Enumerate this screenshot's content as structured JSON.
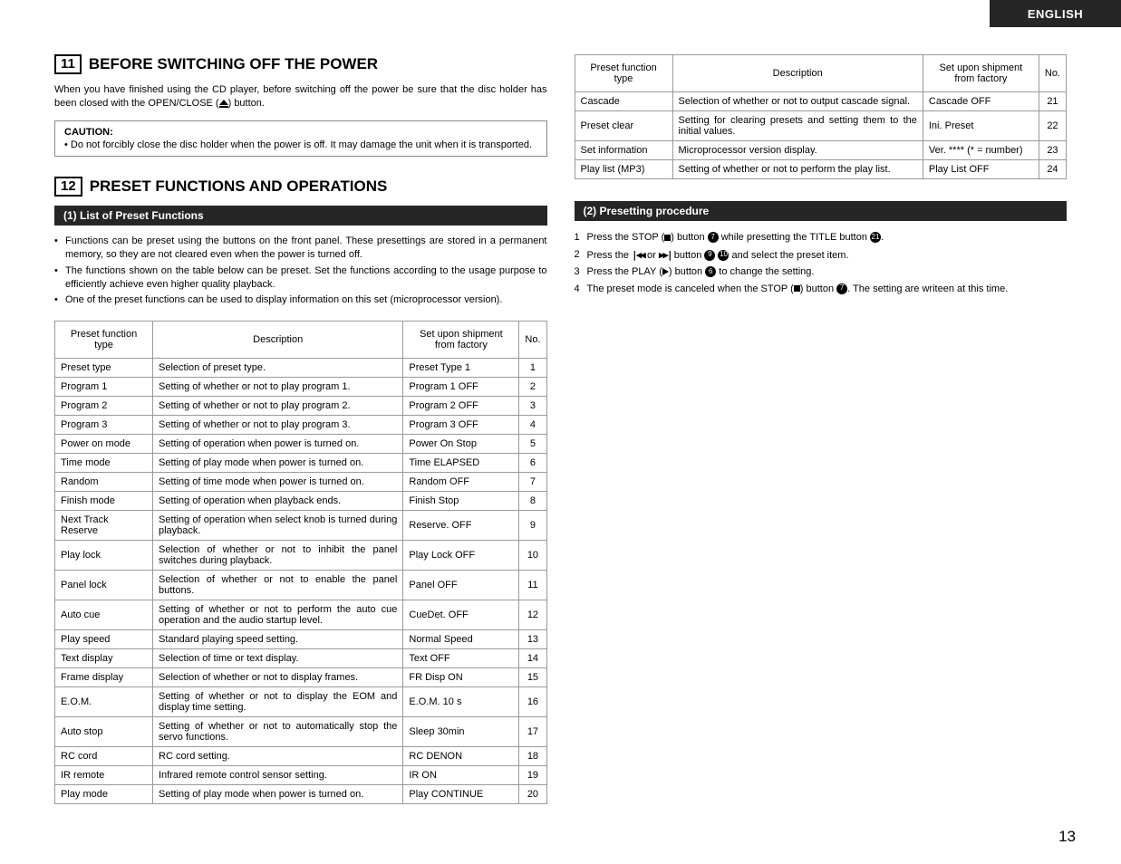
{
  "header": {
    "language": "ENGLISH"
  },
  "page_number": "13",
  "section11": {
    "number": "11",
    "title": "BEFORE SWITCHING OFF THE POWER",
    "intro": "When you have finished using the CD player, before switching off the power be sure that the disc holder has been closed with the OPEN/CLOSE (",
    "intro_suffix": ") button.",
    "caution_title": "CAUTION:",
    "caution_text": "• Do not forcibly close the disc holder when the power is off. It may damage the unit when it is transported."
  },
  "section12": {
    "number": "12",
    "title": "PRESET FUNCTIONS AND OPERATIONS",
    "sub1_title": "(1) List of Preset Functions",
    "sub1_bullets": [
      "Functions can be preset using the buttons on the front panel. These presettings are stored in a permanent memory, so they are not cleared even when the power is turned off.",
      "The functions shown on the table below can be preset. Set the functions according to the usage purpose to efficiently achieve even higher quality playback.",
      "One of the preset functions can be used to display information on this set (microprocessor version)."
    ],
    "sub2_title": "(2) Presetting procedure",
    "sub2_steps": [
      {
        "n": "1",
        "pre": "Press the STOP (",
        "mid1": ") button ",
        "ref1": "7",
        "mid2": " while presetting the TITLE button ",
        "ref2": "21",
        "post": "."
      },
      {
        "n": "2",
        "pre": "Press the ",
        "skip1": "|◀◀",
        "mid1": " or ",
        "skip2": "▶▶|",
        "mid2": " button ",
        "ref1": "9",
        "mid3": " ",
        "ref2": "10",
        "post": " and select the preset item."
      },
      {
        "n": "3",
        "pre": "Press the PLAY (",
        "mid1": ") button ",
        "ref1": "6",
        "post": " to change the setting."
      },
      {
        "n": "4",
        "pre": "The preset mode is canceled when the STOP (",
        "mid1": ") button ",
        "ref1": "7",
        "post": ". The setting are writeen at this time."
      }
    ]
  },
  "table_headers": {
    "type": "Preset function type",
    "desc": "Description",
    "ship": "Set upon shipment from factory",
    "no": "No."
  },
  "table1": [
    {
      "type": "Preset type",
      "desc": "Selection of preset type.",
      "ship": "Preset Type 1",
      "no": "1"
    },
    {
      "type": "Program 1",
      "desc": "Setting of whether or not to play program 1.",
      "ship": "Program 1 OFF",
      "no": "2"
    },
    {
      "type": "Program 2",
      "desc": "Setting of whether or not to play program 2.",
      "ship": "Program 2 OFF",
      "no": "3"
    },
    {
      "type": "Program 3",
      "desc": "Setting of whether or not to play program 3.",
      "ship": "Program 3 OFF",
      "no": "4"
    },
    {
      "type": "Power on mode",
      "desc": "Setting of operation when power is turned on.",
      "ship": "Power On Stop",
      "no": "5"
    },
    {
      "type": "Time mode",
      "desc": "Setting of play mode when power is turned on.",
      "ship": "Time ELAPSED",
      "no": "6"
    },
    {
      "type": "Random",
      "desc": "Setting of time mode when power is turned on.",
      "ship": "Random OFF",
      "no": "7"
    },
    {
      "type": "Finish mode",
      "desc": "Setting of operation when playback ends.",
      "ship": "Finish Stop",
      "no": "8"
    },
    {
      "type": "Next Track Reserve",
      "desc": "Setting of operation when select knob is turned during playback.",
      "ship": "Reserve. OFF",
      "no": "9"
    },
    {
      "type": "Play lock",
      "desc": "Selection of whether or not to inhibit the panel switches during playback.",
      "ship": "Play Lock OFF",
      "no": "10"
    },
    {
      "type": "Panel lock",
      "desc": "Selection of whether or not to enable the panel buttons.",
      "ship": "Panel OFF",
      "no": "11"
    },
    {
      "type": "Auto cue",
      "desc": "Setting of whether or not to perform the auto cue operation and the audio startup level.",
      "ship": "CueDet. OFF",
      "no": "12"
    },
    {
      "type": "Play speed",
      "desc": "Standard playing speed setting.",
      "ship": "Normal Speed",
      "no": "13"
    },
    {
      "type": "Text display",
      "desc": "Selection of time or text display.",
      "ship": "Text OFF",
      "no": "14"
    },
    {
      "type": "Frame display",
      "desc": "Selection of whether or not to display frames.",
      "ship": "FR Disp ON",
      "no": "15"
    },
    {
      "type": "E.O.M.",
      "desc": "Setting of whether or not to display the EOM and display time setting.",
      "ship": "E.O.M. 10 s",
      "no": "16"
    },
    {
      "type": "Auto stop",
      "desc": "Setting of whether or not to automatically stop the servo functions.",
      "ship": "Sleep 30min",
      "no": "17"
    },
    {
      "type": "RC cord",
      "desc": "RC cord setting.",
      "ship": "RC DENON",
      "no": "18"
    },
    {
      "type": "IR remote",
      "desc": "Infrared remote control sensor setting.",
      "ship": "IR ON",
      "no": "19"
    },
    {
      "type": "Play mode",
      "desc": "Setting of play mode when power is turned on.",
      "ship": "Play CONTINUE",
      "no": "20"
    }
  ],
  "table2": [
    {
      "type": "Cascade",
      "desc": "Selection of whether or not to output cascade signal.",
      "ship": "Cascade OFF",
      "no": "21"
    },
    {
      "type": "Preset clear",
      "desc": "Setting for clearing presets and setting them to the initial values.",
      "ship": "Ini. Preset",
      "no": "22"
    },
    {
      "type": "Set information",
      "desc": "Microprocessor version display.",
      "ship": "Ver. **** (* = number)",
      "no": "23"
    },
    {
      "type": "Play list (MP3)",
      "desc": "Setting of whether or not to perform the play list.",
      "ship": "Play List OFF",
      "no": "24"
    }
  ],
  "colors": {
    "header_bg": "#262626",
    "header_text": "#ffffff",
    "body_text": "#000000",
    "border": "#999999",
    "background": "#ffffff"
  }
}
